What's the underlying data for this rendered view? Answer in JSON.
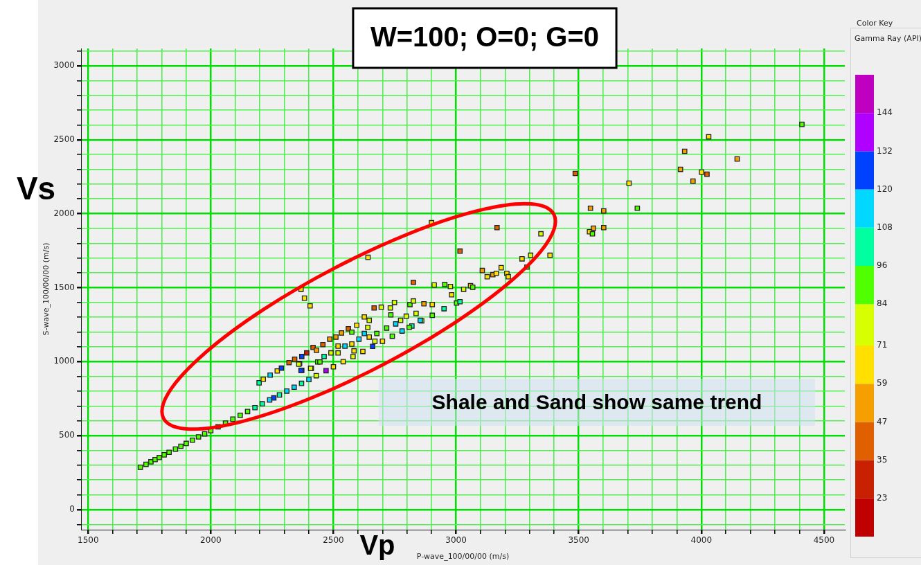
{
  "chart_data": {
    "type": "scatter",
    "title": "W=100; O=0; G=0",
    "xlabel": "P-wave_100/00/00 (m/s)",
    "ylabel": "S-wave_100/00/00 (m/s)",
    "clabel": "Gamma Ray (API)",
    "annotations": [
      "Shale and Sand show same trend",
      "Vs",
      "Vp",
      "Color Key"
    ],
    "marker": "square",
    "grid": true,
    "legend": false,
    "xlim": [
      1471,
      4585
    ],
    "ylim": [
      -136,
      3117
    ],
    "xticks": [
      1500,
      {
        "value": 1600,
        "label": null
      },
      {
        "value": 1700,
        "label": null
      },
      {
        "value": 1800,
        "label": null
      },
      {
        "value": 1900,
        "label": null
      },
      2000,
      {
        "value": 2100,
        "label": null
      },
      {
        "value": 2200,
        "label": null
      },
      {
        "value": 2300,
        "label": null
      },
      {
        "value": 2400,
        "label": null
      },
      2500,
      {
        "value": 2600,
        "label": null
      },
      {
        "value": 2700,
        "label": null
      },
      {
        "value": 2800,
        "label": null
      },
      {
        "value": 2900,
        "label": null
      },
      3000,
      {
        "value": 3100,
        "label": null
      },
      {
        "value": 3200,
        "label": null
      },
      {
        "value": 3300,
        "label": null
      },
      {
        "value": 3400,
        "label": null
      },
      3500,
      {
        "value": 3600,
        "label": null
      },
      {
        "value": 3700,
        "label": null
      },
      {
        "value": 3800,
        "label": null
      },
      {
        "value": 3900,
        "label": null
      },
      4000,
      {
        "value": 4100,
        "label": null
      },
      {
        "value": 4200,
        "label": null
      },
      {
        "value": 4300,
        "label": null
      },
      {
        "value": 4400,
        "label": null
      },
      4500
    ],
    "yticks": [
      {
        "value": -100,
        "label": null
      },
      0,
      {
        "value": 100,
        "label": null
      },
      {
        "value": 200,
        "label": null
      },
      {
        "value": 300,
        "label": null
      },
      {
        "value": 400,
        "label": null
      },
      500,
      {
        "value": 600,
        "label": null
      },
      {
        "value": 700,
        "label": null
      },
      {
        "value": 800,
        "label": null
      },
      {
        "value": 900,
        "label": null
      },
      1000,
      {
        "value": 1100,
        "label": null
      },
      {
        "value": 1200,
        "label": null
      },
      {
        "value": 1300,
        "label": null
      },
      {
        "value": 1400,
        "label": null
      },
      1500,
      {
        "value": 1600,
        "label": null
      },
      {
        "value": 1700,
        "label": null
      },
      {
        "value": 1800,
        "label": null
      },
      {
        "value": 1900,
        "label": null
      },
      2000,
      {
        "value": 2100,
        "label": null
      },
      {
        "value": 2200,
        "label": null
      },
      {
        "value": 2300,
        "label": null
      },
      {
        "value": 2400,
        "label": null
      },
      2500,
      {
        "value": 2600,
        "label": null
      },
      {
        "value": 2700,
        "label": null
      },
      {
        "value": 2800,
        "label": null
      },
      {
        "value": 2900,
        "label": null
      },
      3000,
      {
        "value": 3100,
        "label": null
      }
    ],
    "clim": [
      11,
      156
    ],
    "cticks": [
      23,
      35,
      47,
      59,
      71,
      84,
      96,
      108,
      120,
      132,
      144
    ],
    "series": [
      {
        "x": [
          1713,
          1736,
          1756,
          1773,
          1790,
          1810,
          1830,
          1856,
          1878,
          1900,
          1925,
          1950,
          1975,
          2000,
          2030,
          2060,
          2090,
          2120,
          2150,
          2180,
          2210,
          2240,
          2257,
          2280,
          2310,
          2340,
          2370,
          2400,
          2430,
          2470,
          2500,
          2540,
          2580,
          2620,
          2660,
          2700,
          2740,
          2780,
          2820,
          2860,
          2903,
          2197,
          2214,
          2242,
          2271,
          2288,
          2319,
          2342,
          2371,
          2391,
          2417,
          2431,
          2457,
          2485,
          2510,
          2533,
          2561,
          2595,
          2626,
          2646,
          2362,
          2410,
          2371,
          2436,
          2462,
          2490,
          2519,
          2547,
          2575,
          2604,
          2626,
          2640,
          2677,
          2717,
          2754,
          2774,
          2734,
          2797,
          2837,
          2854,
          2809,
          2575,
          2519,
          2584,
          2669,
          2646,
          2368,
          2359,
          2407,
          2445,
          2368,
          2382,
          2405,
          2641,
          2900,
          2826,
          2869,
          2903,
          2812,
          2826,
          2749,
          2732,
          2666,
          2695,
          2911,
          3167,
          3346,
          3016,
          3269,
          3304,
          3383,
          3289,
          3107,
          3184,
          3127,
          3150,
          3164,
          3207,
          3213,
          3059,
          3068,
          3031,
          2954,
          2977,
          2982,
          3002,
          2951,
          3016,
          4410,
          4030,
          3932,
          4146,
          3915,
          4001,
          4023,
          3966,
          3705,
          3486,
          3739,
          3548,
          3602,
          3602,
          3560,
          3544,
          3556
        ],
        "values": [
          286,
          306,
          323,
          338,
          352,
          370,
          387,
          409,
          428,
          447,
          469,
          491,
          512,
          534,
          560,
          585,
          611,
          637,
          663,
          689,
          715,
          741,
          755,
          775,
          801,
          827,
          853,
          879,
          905,
          939,
          965,
          1000,
          1034,
          1069,
          1103,
          1138,
          1172,
          1207,
          1241,
          1276,
          1313,
          857,
          881,
          909,
          937,
          956,
          993,
          1016,
          1035,
          1059,
          1096,
          1077,
          1115,
          1152,
          1166,
          1194,
          1222,
          1246,
          1302,
          1279,
          988,
          955,
          941,
          998,
          1035,
          1059,
          1105,
          1105,
          1119,
          1152,
          1190,
          1232,
          1190,
          1227,
          1255,
          1279,
          1316,
          1307,
          1326,
          1279,
          1232,
          1199,
          1059,
          1073,
          1138,
          1166,
          941,
          983,
          955,
          998,
          1489,
          1429,
          1377,
          1705,
          1939,
          1536,
          1391,
          1386,
          1386,
          1410,
          1400,
          1363,
          1363,
          1368,
          1518,
          1906,
          1864,
          1747,
          1695,
          1719,
          1719,
          1639,
          1616,
          1635,
          1574,
          1588,
          1597,
          1597,
          1574,
          1513,
          1503,
          1489,
          1522,
          1508,
          1452,
          1396,
          1358,
          1405,
          2604,
          2520,
          2422,
          2370,
          2300,
          2281,
          2267,
          2220,
          2206,
          2272,
          2037,
          2037,
          2019,
          1906,
          1902,
          1878,
          1864
        ],
        "cvalues": [
          90,
          90,
          90,
          90,
          90,
          90,
          90,
          90,
          90,
          90,
          90,
          90,
          90,
          90,
          90,
          90,
          90,
          90,
          90,
          100,
          105,
          110,
          125,
          100,
          110,
          115,
          105,
          110,
          80,
          138,
          70,
          65,
          78,
          65,
          125,
          65,
          90,
          110,
          100,
          78,
          90,
          100,
          70,
          115,
          65,
          125,
          40,
          35,
          120,
          30,
          40,
          50,
          45,
          50,
          55,
          55,
          40,
          65,
          60,
          80,
          78,
          78,
          120,
          90,
          100,
          78,
          70,
          110,
          70,
          110,
          110,
          78,
          90,
          90,
          110,
          78,
          90,
          75,
          75,
          110,
          90,
          90,
          75,
          70,
          80,
          60,
          125,
          78,
          78,
          90,
          70,
          70,
          70,
          65,
          65,
          40,
          50,
          65,
          90,
          78,
          78,
          78,
          40,
          75,
          78,
          35,
          78,
          40,
          65,
          78,
          65,
          90,
          50,
          65,
          65,
          50,
          70,
          65,
          70,
          60,
          90,
          78,
          90,
          75,
          70,
          90,
          100,
          100,
          90,
          65,
          50,
          50,
          50,
          65,
          35,
          50,
          65,
          35,
          90,
          50,
          50,
          50,
          50,
          65,
          90
        ]
      }
    ]
  }
}
